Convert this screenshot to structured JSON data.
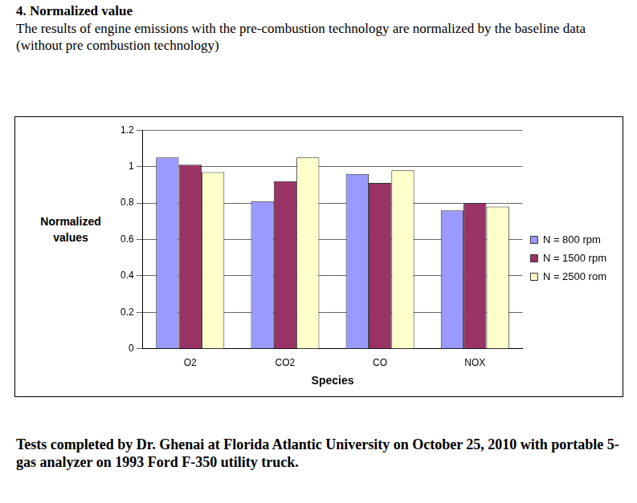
{
  "heading": "4. Normalized value",
  "description": "The results of engine emissions with the pre-combustion technology are normalized by the baseline data (without pre combustion technology)",
  "footer": "Tests completed by Dr. Ghenai at Florida Atlantic University on October 25, 2010 with portable 5-gas analyzer on 1993 Ford F-350 utility truck.",
  "chart_data": {
    "type": "bar",
    "x_label": "Species",
    "y_label": "Normalized values",
    "categories": [
      "O2",
      "CO2",
      "CO",
      "NOX"
    ],
    "series": [
      {
        "name": "N = 800 rpm",
        "color": "#9999ff",
        "values": [
          1.05,
          0.81,
          0.96,
          0.76
        ]
      },
      {
        "name": "N = 1500 rpm",
        "color": "#993366",
        "values": [
          1.01,
          0.92,
          0.91,
          0.8
        ]
      },
      {
        "name": "N = 2500 rom",
        "color": "#ffffcc",
        "values": [
          0.97,
          1.05,
          0.98,
          0.78
        ]
      }
    ],
    "ylim": [
      0,
      1.2
    ],
    "yticks": [
      0,
      0.2,
      0.4,
      0.6,
      0.8,
      1,
      1.2
    ],
    "grid": true,
    "legend": "right"
  }
}
